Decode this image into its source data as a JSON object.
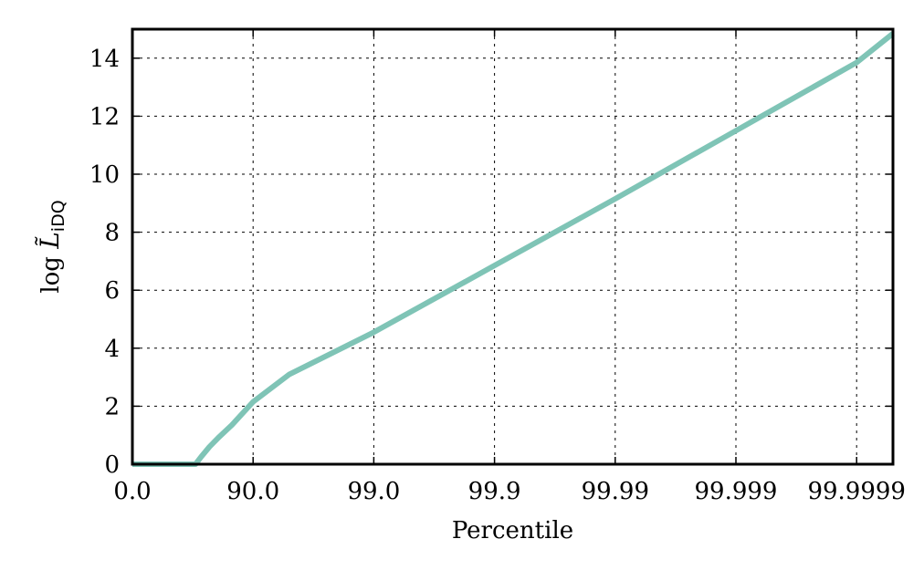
{
  "chart_data": {
    "type": "line",
    "xlabel": "Percentile",
    "ylabel": {
      "prefix": "log ",
      "symbol": "L̃",
      "subscript": "iDQ"
    },
    "x_scale": "inverse-complement (log of 1/(1 - percentile/100))",
    "x_ticks": [
      {
        "value": 0.0,
        "label": "0.0"
      },
      {
        "value": 90.0,
        "label": "90.0"
      },
      {
        "value": 99.0,
        "label": "99.0"
      },
      {
        "value": 99.9,
        "label": "99.9"
      },
      {
        "value": 99.99,
        "label": "99.99"
      },
      {
        "value": 99.999,
        "label": "99.999"
      },
      {
        "value": 99.9999,
        "label": "99.9999"
      }
    ],
    "y_ticks": [
      {
        "value": 0,
        "label": "0"
      },
      {
        "value": 2,
        "label": "2"
      },
      {
        "value": 4,
        "label": "4"
      },
      {
        "value": 6,
        "label": "6"
      },
      {
        "value": 8,
        "label": "8"
      },
      {
        "value": 10,
        "label": "10"
      },
      {
        "value": 12,
        "label": "12"
      },
      {
        "value": 14,
        "label": "14"
      }
    ],
    "ylim": [
      0,
      15
    ],
    "xlim": [
      0.0,
      99.99995
    ],
    "grid": true,
    "legend": "none",
    "series": [
      {
        "color": "#7fc4b6",
        "points": [
          {
            "x": 0.0,
            "y": 0.0
          },
          {
            "x": 70.0,
            "y": 0.0
          },
          {
            "x": 73.0,
            "y": 0.25
          },
          {
            "x": 77.0,
            "y": 0.6
          },
          {
            "x": 81.0,
            "y": 0.95
          },
          {
            "x": 85.0,
            "y": 1.35
          },
          {
            "x": 90.0,
            "y": 2.15
          },
          {
            "x": 95.0,
            "y": 3.1
          },
          {
            "x": 99.0,
            "y": 4.55
          },
          {
            "x": 99.9,
            "y": 6.85
          },
          {
            "x": 99.99,
            "y": 9.15
          },
          {
            "x": 99.999,
            "y": 11.5
          },
          {
            "x": 99.9999,
            "y": 13.85
          },
          {
            "x": 99.99995,
            "y": 14.85
          }
        ]
      }
    ]
  }
}
